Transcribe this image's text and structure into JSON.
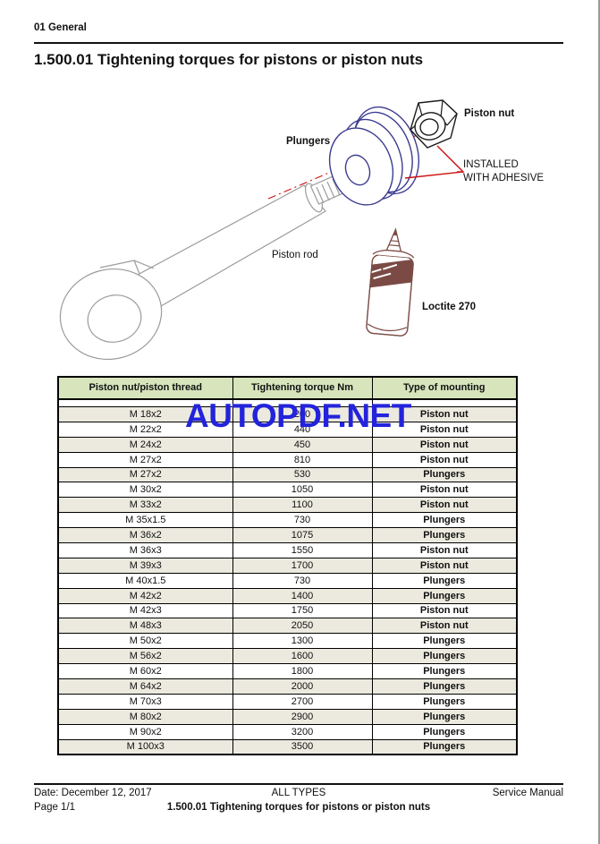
{
  "header": {
    "section": "01 General"
  },
  "title": "1.500.01 Tightening torques for pistons or piston nuts",
  "diagram": {
    "labels": {
      "piston_nut": "Piston nut",
      "plungers": "Plungers",
      "installed_line1": "INSTALLED",
      "installed_line2": "WITH ADHESIVE",
      "piston_rod": "Piston rod",
      "loctite": "Loctite 270"
    }
  },
  "watermark": {
    "text": "AUTOPDF.NET"
  },
  "table": {
    "headers": [
      "Piston nut/piston thread",
      "Tightening torque Nm",
      "Type of mounting"
    ],
    "rows": [
      [
        "M 18x2",
        "200",
        "Piston nut"
      ],
      [
        "M 22x2",
        "440",
        "Piston nut"
      ],
      [
        "M 24x2",
        "450",
        "Piston nut"
      ],
      [
        "M 27x2",
        "810",
        "Piston nut"
      ],
      [
        "M 27x2",
        "530",
        "Plungers"
      ],
      [
        "M 30x2",
        "1050",
        "Piston nut"
      ],
      [
        "M 33x2",
        "1100",
        "Piston nut"
      ],
      [
        "M 35x1.5",
        "730",
        "Plungers"
      ],
      [
        "M 36x2",
        "1075",
        "Plungers"
      ],
      [
        "M 36x3",
        "1550",
        "Piston nut"
      ],
      [
        "M 39x3",
        "1700",
        "Piston nut"
      ],
      [
        "M 40x1.5",
        "730",
        "Plungers"
      ],
      [
        "M 42x2",
        "1400",
        "Plungers"
      ],
      [
        "M 42x3",
        "1750",
        "Piston nut"
      ],
      [
        "M 48x3",
        "2050",
        "Piston nut"
      ],
      [
        "M 50x2",
        "1300",
        "Plungers"
      ],
      [
        "M 56x2",
        "1600",
        "Plungers"
      ],
      [
        "M 60x2",
        "1800",
        "Plungers"
      ],
      [
        "M 64x2",
        "2000",
        "Plungers"
      ],
      [
        "M 70x3",
        "2700",
        "Plungers"
      ],
      [
        "M 80x2",
        "2900",
        "Plungers"
      ],
      [
        "M 90x2",
        "3200",
        "Plungers"
      ],
      [
        "M 100x3",
        "3500",
        "Plungers"
      ]
    ]
  },
  "footer": {
    "date": "Date: December 12, 2017",
    "types": "ALL TYPES",
    "manual": "Service Manual",
    "page": "Page 1/1",
    "doc_title": "1.500.01 Tightening torques for pistons or piston nuts"
  },
  "colors": {
    "header-bg": "#D7E4BC",
    "alt-row-bg": "#ECEADF",
    "watermark": "#2323DC",
    "leader-red": "#CC1111",
    "plunger-blue": "#3B3B8F",
    "rod-grey": "#9B9B9B",
    "bottle-maroon": "#7B4A44",
    "nut-black": "#1A1A1A"
  }
}
